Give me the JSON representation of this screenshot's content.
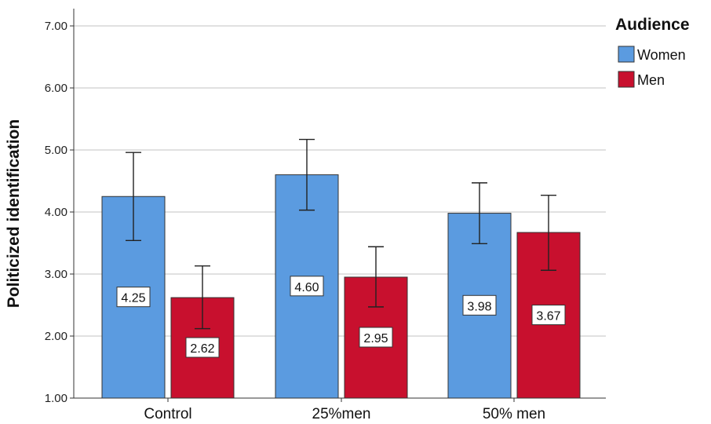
{
  "chart_data": {
    "type": "bar",
    "ylabel": "Politicized identification",
    "xlabel": "",
    "ylim": [
      1.0,
      7.0
    ],
    "yticks": [
      "1.00",
      "2.00",
      "3.00",
      "4.00",
      "5.00",
      "6.00",
      "7.00"
    ],
    "grid": true,
    "categories": [
      "Control",
      "25%men",
      "50% men"
    ],
    "legend": {
      "title": "Audience",
      "placement": "right-top"
    },
    "series": [
      {
        "name": "Women",
        "color": "#5b9be0",
        "values": [
          4.25,
          4.6,
          3.98
        ],
        "labels": [
          "4.25",
          "4.60",
          "3.98"
        ],
        "error_low": [
          3.54,
          4.03,
          3.49
        ],
        "error_high": [
          4.96,
          5.17,
          4.47
        ]
      },
      {
        "name": "Men",
        "color": "#c8102e",
        "values": [
          2.62,
          2.95,
          3.67
        ],
        "labels": [
          "2.62",
          "2.95",
          "3.67"
        ],
        "error_low": [
          2.12,
          2.47,
          3.06
        ],
        "error_high": [
          3.13,
          3.44,
          4.27
        ]
      }
    ]
  }
}
